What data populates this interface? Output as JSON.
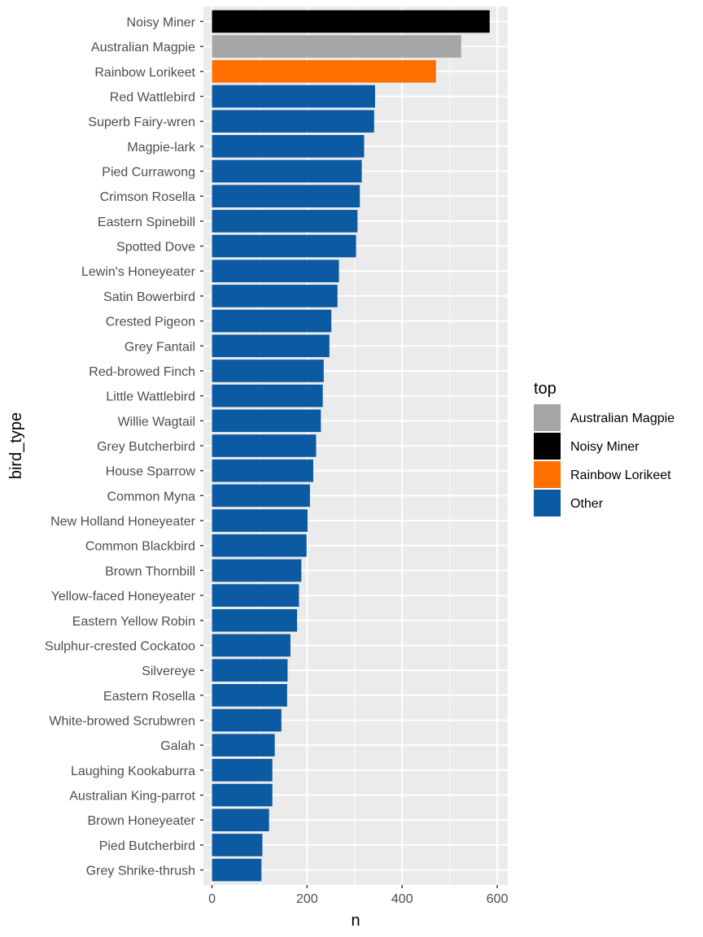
{
  "chart_data": {
    "type": "bar",
    "orientation": "horizontal",
    "xlabel": "n",
    "ylabel": "bird_type",
    "xlim": [
      0,
      600
    ],
    "x_ticks": [
      0,
      200,
      400,
      600
    ],
    "grid": true,
    "legend": {
      "title": "top",
      "position": "right",
      "entries": [
        {
          "label": "Australian Magpie",
          "color": "#A6A6A6"
        },
        {
          "label": "Noisy Miner",
          "color": "#000000"
        },
        {
          "label": "Rainbow Lorikeet",
          "color": "#FF6F00"
        },
        {
          "label": "Other",
          "color": "#0B5AA2"
        }
      ]
    },
    "categories": [
      "Noisy Miner",
      "Australian Magpie",
      "Rainbow Lorikeet",
      "Red Wattlebird",
      "Superb Fairy-wren",
      "Magpie-lark",
      "Pied Currawong",
      "Crimson Rosella",
      "Eastern Spinebill",
      "Spotted Dove",
      "Lewin's Honeyeater",
      "Satin Bowerbird",
      "Crested Pigeon",
      "Grey Fantail",
      "Red-browed Finch",
      "Little Wattlebird",
      "Willie Wagtail",
      "Grey Butcherbird",
      "House Sparrow",
      "Common Myna",
      "New Holland Honeyeater",
      "Common Blackbird",
      "Brown Thornbill",
      "Yellow-faced Honeyeater",
      "Eastern Yellow Robin",
      "Sulphur-crested Cockatoo",
      "Silvereye",
      "Eastern Rosella",
      "White-browed Scrubwren",
      "Galah",
      "Laughing Kookaburra",
      "Australian King-parrot",
      "Brown Honeyeater",
      "Pied Butcherbird",
      "Grey Shrike-thrush"
    ],
    "values": [
      584,
      524,
      471,
      343,
      341,
      320,
      315,
      311,
      306,
      303,
      267,
      264,
      251,
      247,
      235,
      233,
      229,
      219,
      213,
      206,
      201,
      199,
      188,
      183,
      179,
      165,
      159,
      158,
      146,
      132,
      127,
      127,
      120,
      106,
      104
    ],
    "groups": [
      "Noisy Miner",
      "Australian Magpie",
      "Rainbow Lorikeet",
      "Other",
      "Other",
      "Other",
      "Other",
      "Other",
      "Other",
      "Other",
      "Other",
      "Other",
      "Other",
      "Other",
      "Other",
      "Other",
      "Other",
      "Other",
      "Other",
      "Other",
      "Other",
      "Other",
      "Other",
      "Other",
      "Other",
      "Other",
      "Other",
      "Other",
      "Other",
      "Other",
      "Other",
      "Other",
      "Other",
      "Other",
      "Other"
    ]
  }
}
